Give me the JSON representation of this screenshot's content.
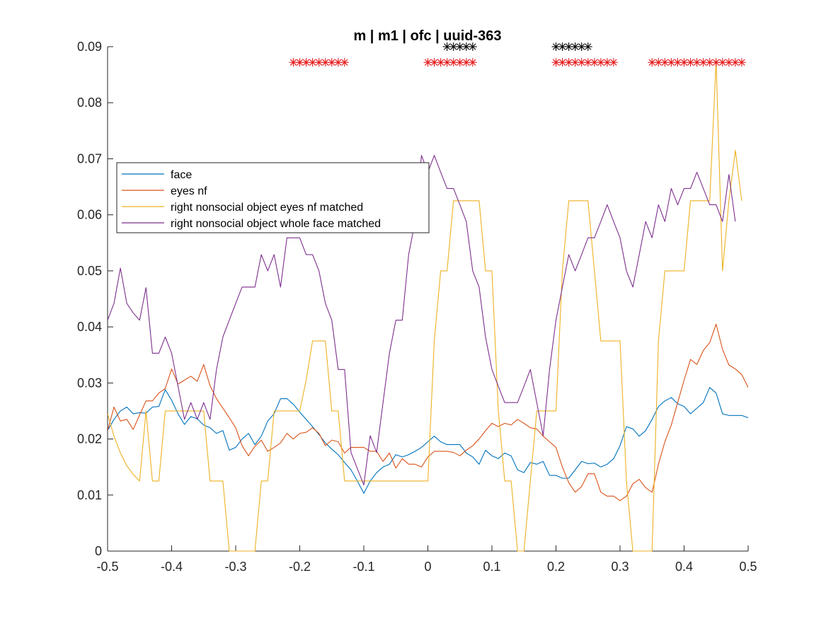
{
  "chart_data": {
    "type": "line",
    "title": "m | m1 | ofc | uuid-363",
    "xlabel": "",
    "ylabel": "",
    "xlim": [
      -0.5,
      0.5
    ],
    "ylim": [
      0,
      0.09
    ],
    "xticks": [
      "-0.5",
      "-0.4",
      "-0.3",
      "-0.2",
      "-0.1",
      "0",
      "0.1",
      "0.2",
      "0.3",
      "0.4",
      "0.5"
    ],
    "yticks": [
      "0",
      "0.01",
      "0.02",
      "0.03",
      "0.04",
      "0.05",
      "0.06",
      "0.07",
      "0.08",
      "0.09"
    ],
    "grid": false,
    "legend_position": "upper-left",
    "x_start": -0.5,
    "x_step": 0.01,
    "series": [
      {
        "name": "face",
        "color": "#0072BD",
        "values": [
          0.0215,
          0.0235,
          0.025,
          0.0257,
          0.0245,
          0.0247,
          0.0246,
          0.0257,
          0.0258,
          0.0288,
          0.0269,
          0.0245,
          0.0226,
          0.024,
          0.0236,
          0.0225,
          0.022,
          0.021,
          0.0215,
          0.018,
          0.0185,
          0.02,
          0.021,
          0.019,
          0.0205,
          0.0232,
          0.0245,
          0.0272,
          0.0272,
          0.0262,
          0.0248,
          0.0235,
          0.0222,
          0.0208,
          0.0193,
          0.0182,
          0.0172,
          0.0158,
          0.0145,
          0.0125,
          0.0103,
          0.0125,
          0.014,
          0.015,
          0.0155,
          0.0172,
          0.0168,
          0.0172,
          0.0178,
          0.0185,
          0.0195,
          0.0205,
          0.0195,
          0.019,
          0.019,
          0.019,
          0.0175,
          0.0168,
          0.0155,
          0.018,
          0.017,
          0.0165,
          0.0175,
          0.017,
          0.0145,
          0.014,
          0.0158,
          0.0155,
          0.016,
          0.0135,
          0.0135,
          0.013,
          0.013,
          0.0145,
          0.016,
          0.0156,
          0.0157,
          0.015,
          0.0155,
          0.0165,
          0.0188,
          0.0222,
          0.0218,
          0.0205,
          0.0215,
          0.0235,
          0.0258,
          0.0268,
          0.0274,
          0.0263,
          0.0258,
          0.0245,
          0.0255,
          0.0265,
          0.0292,
          0.0282,
          0.0245,
          0.0242,
          0.0242,
          0.0242,
          0.0238,
          0.0225,
          0.0205
        ]
      },
      {
        "name": "eyes nf",
        "color": "#D95319",
        "values": [
          0.0215,
          0.0257,
          0.0232,
          0.0235,
          0.0217,
          0.0243,
          0.0268,
          0.0268,
          0.0282,
          0.029,
          0.0325,
          0.0298,
          0.0305,
          0.0312,
          0.0303,
          0.0333,
          0.0295,
          0.0272,
          0.0255,
          0.0238,
          0.022,
          0.0188,
          0.017,
          0.0187,
          0.0198,
          0.0178,
          0.0185,
          0.0193,
          0.021,
          0.02,
          0.021,
          0.0212,
          0.022,
          0.021,
          0.0188,
          0.0198,
          0.0195,
          0.0175,
          0.0185,
          0.0185,
          0.0185,
          0.0178,
          0.0178,
          0.016,
          0.0175,
          0.0148,
          0.0165,
          0.0155,
          0.0155,
          0.015,
          0.0168,
          0.0178,
          0.0178,
          0.0178,
          0.0176,
          0.017,
          0.018,
          0.0188,
          0.02,
          0.0215,
          0.0228,
          0.0222,
          0.0228,
          0.0225,
          0.0235,
          0.0228,
          0.022,
          0.0218,
          0.0205,
          0.0195,
          0.0185,
          0.015,
          0.0122,
          0.0105,
          0.0115,
          0.0138,
          0.0138,
          0.0105,
          0.0098,
          0.0098,
          0.009,
          0.0098,
          0.012,
          0.0128,
          0.0113,
          0.0105,
          0.0155,
          0.0195,
          0.0225,
          0.0265,
          0.0305,
          0.0342,
          0.0333,
          0.0358,
          0.0372,
          0.0405,
          0.036,
          0.0332,
          0.0325,
          0.0315,
          0.0292,
          0.0272
        ]
      },
      {
        "name": "right nonsocial object eyes nf matched",
        "color": "#EDB120",
        "values": [
          0.0245,
          0.0205,
          0.0175,
          0.0152,
          0.0137,
          0.0125,
          0.025,
          0.0125,
          0.0125,
          0.025,
          0.025,
          0.025,
          0.025,
          0.025,
          0.025,
          0.025,
          0.0125,
          0.0125,
          0.0125,
          0,
          0,
          0,
          0,
          0,
          0.0125,
          0.0125,
          0.025,
          0.025,
          0.025,
          0.025,
          0.025,
          0.0305,
          0.0375,
          0.0375,
          0.0375,
          0.025,
          0.025,
          0.0125,
          0.0125,
          0.0125,
          0.0125,
          0.0125,
          0.0125,
          0.0125,
          0.0125,
          0.0125,
          0.0125,
          0.0125,
          0.0125,
          0.0125,
          0.0125,
          0.0375,
          0.05,
          0.05,
          0.0625,
          0.0625,
          0.0625,
          0.0625,
          0.0625,
          0.05,
          0.05,
          0.025,
          0.0125,
          0.0125,
          0,
          0,
          0.0125,
          0.025,
          0.025,
          0.025,
          0.025,
          0.05,
          0.0625,
          0.0625,
          0.0625,
          0.0625,
          0.05,
          0.0375,
          0.0375,
          0.0375,
          0.0375,
          0.0125,
          0,
          0,
          0,
          0,
          0.0375,
          0.05,
          0.05,
          0.05,
          0.05,
          0.0625,
          0.0625,
          0.0625,
          0.0625,
          0.0875,
          0.05,
          0.0625,
          0.0715,
          0.0625
        ]
      },
      {
        "name": "right nonsocial object whole face matched",
        "color": "#7E2F8E",
        "values": [
          0.0412,
          0.0442,
          0.0505,
          0.0442,
          0.0425,
          0.0412,
          0.047,
          0.0353,
          0.0353,
          0.0382,
          0.0353,
          0.0294,
          0.0235,
          0.0265,
          0.0235,
          0.0265,
          0.0235,
          0.0324,
          0.0382,
          0.0412,
          0.0442,
          0.0471,
          0.0471,
          0.0471,
          0.0529,
          0.05,
          0.0529,
          0.0471,
          0.0559,
          0.0559,
          0.0559,
          0.0529,
          0.0529,
          0.05,
          0.0442,
          0.0412,
          0.0324,
          0.0324,
          0.0176,
          0.0147,
          0.0118,
          0.0206,
          0.0176,
          0.0265,
          0.0353,
          0.0412,
          0.0412,
          0.0529,
          0.0588,
          0.0706,
          0.0676,
          0.0706,
          0.0676,
          0.0647,
          0.0647,
          0.0618,
          0.0588,
          0.05,
          0.0471,
          0.0382,
          0.0324,
          0.0294,
          0.0265,
          0.0265,
          0.0265,
          0.0294,
          0.0324,
          0.0265,
          0.0206,
          0.0324,
          0.0412,
          0.0471,
          0.0529,
          0.05,
          0.0529,
          0.0559,
          0.0559,
          0.0588,
          0.0618,
          0.0588,
          0.0559,
          0.05,
          0.0471,
          0.0529,
          0.0588,
          0.0559,
          0.0618,
          0.0588,
          0.0647,
          0.0618,
          0.0647,
          0.0647,
          0.0676,
          0.0647,
          0.0618,
          0.0618,
          0.0588,
          0.0672,
          0.0588
        ]
      }
    ],
    "significance_markers": [
      {
        "name": "black",
        "color": "#000000",
        "y": 0.09,
        "x": [
          0.03,
          0.04,
          0.05,
          0.06,
          0.07,
          0.2,
          0.21,
          0.22,
          0.23,
          0.24,
          0.25
        ]
      },
      {
        "name": "red",
        "color": "#E41A1C",
        "y": 0.0872,
        "x": [
          -0.21,
          -0.2,
          -0.19,
          -0.18,
          -0.17,
          -0.16,
          -0.15,
          -0.14,
          -0.13,
          0.0,
          0.01,
          0.02,
          0.03,
          0.04,
          0.05,
          0.06,
          0.07,
          0.2,
          0.21,
          0.22,
          0.23,
          0.24,
          0.25,
          0.26,
          0.27,
          0.28,
          0.29,
          0.35,
          0.36,
          0.37,
          0.38,
          0.39,
          0.4,
          0.41,
          0.42,
          0.43,
          0.44,
          0.45,
          0.46,
          0.47,
          0.48,
          0.49
        ]
      }
    ]
  }
}
